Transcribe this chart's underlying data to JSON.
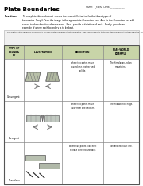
{
  "title": "Plate Boundaries",
  "name_label": "Name:   _Payne Carter_____________",
  "dir_bold": "Directions:",
  "dir_rest": " To complete this worksheet, choose the correct illustration for the three types of boundaries. Drag & Drop the image in the appropriate illustration box.  Also, in the illustration box add arrows to show direction of movement.  Next, provide a definition of each.  Finally, provide an example of where each boundary is to be best.",
  "intro_text": "The Earth's lithosphere is divided into various plates known as tectonic plates. This explains plate tectonics, the movement of these plates. The heat from the Earth's core causes the plates to move. There are three main plate boundary classifications: convergent, divergent, and transform.",
  "header_bg": "#c8d4a8",
  "col_headers": [
    "TYPE OF\nBOUNDA\nRY",
    "ILLUSTRATION",
    "DEFINITION",
    "REAL-WORLD\nEXAMPLE"
  ],
  "rows": [
    {
      "type": "Convergent",
      "definition": "where two plates move\ntoward one another and\ncollide.",
      "example": "The Himalayan-Indian\nmountains."
    },
    {
      "type": "Divergent",
      "definition": "where two plates move\naway from one another.",
      "example": "The mid-Atlantic ridge."
    },
    {
      "type": "Transform",
      "definition": "where two plates slide next\nto each other horizontally.",
      "example": "San Andreas fault line."
    }
  ],
  "body_bg": "#ffffff",
  "line_color": "#888888",
  "border_color": "#555555"
}
